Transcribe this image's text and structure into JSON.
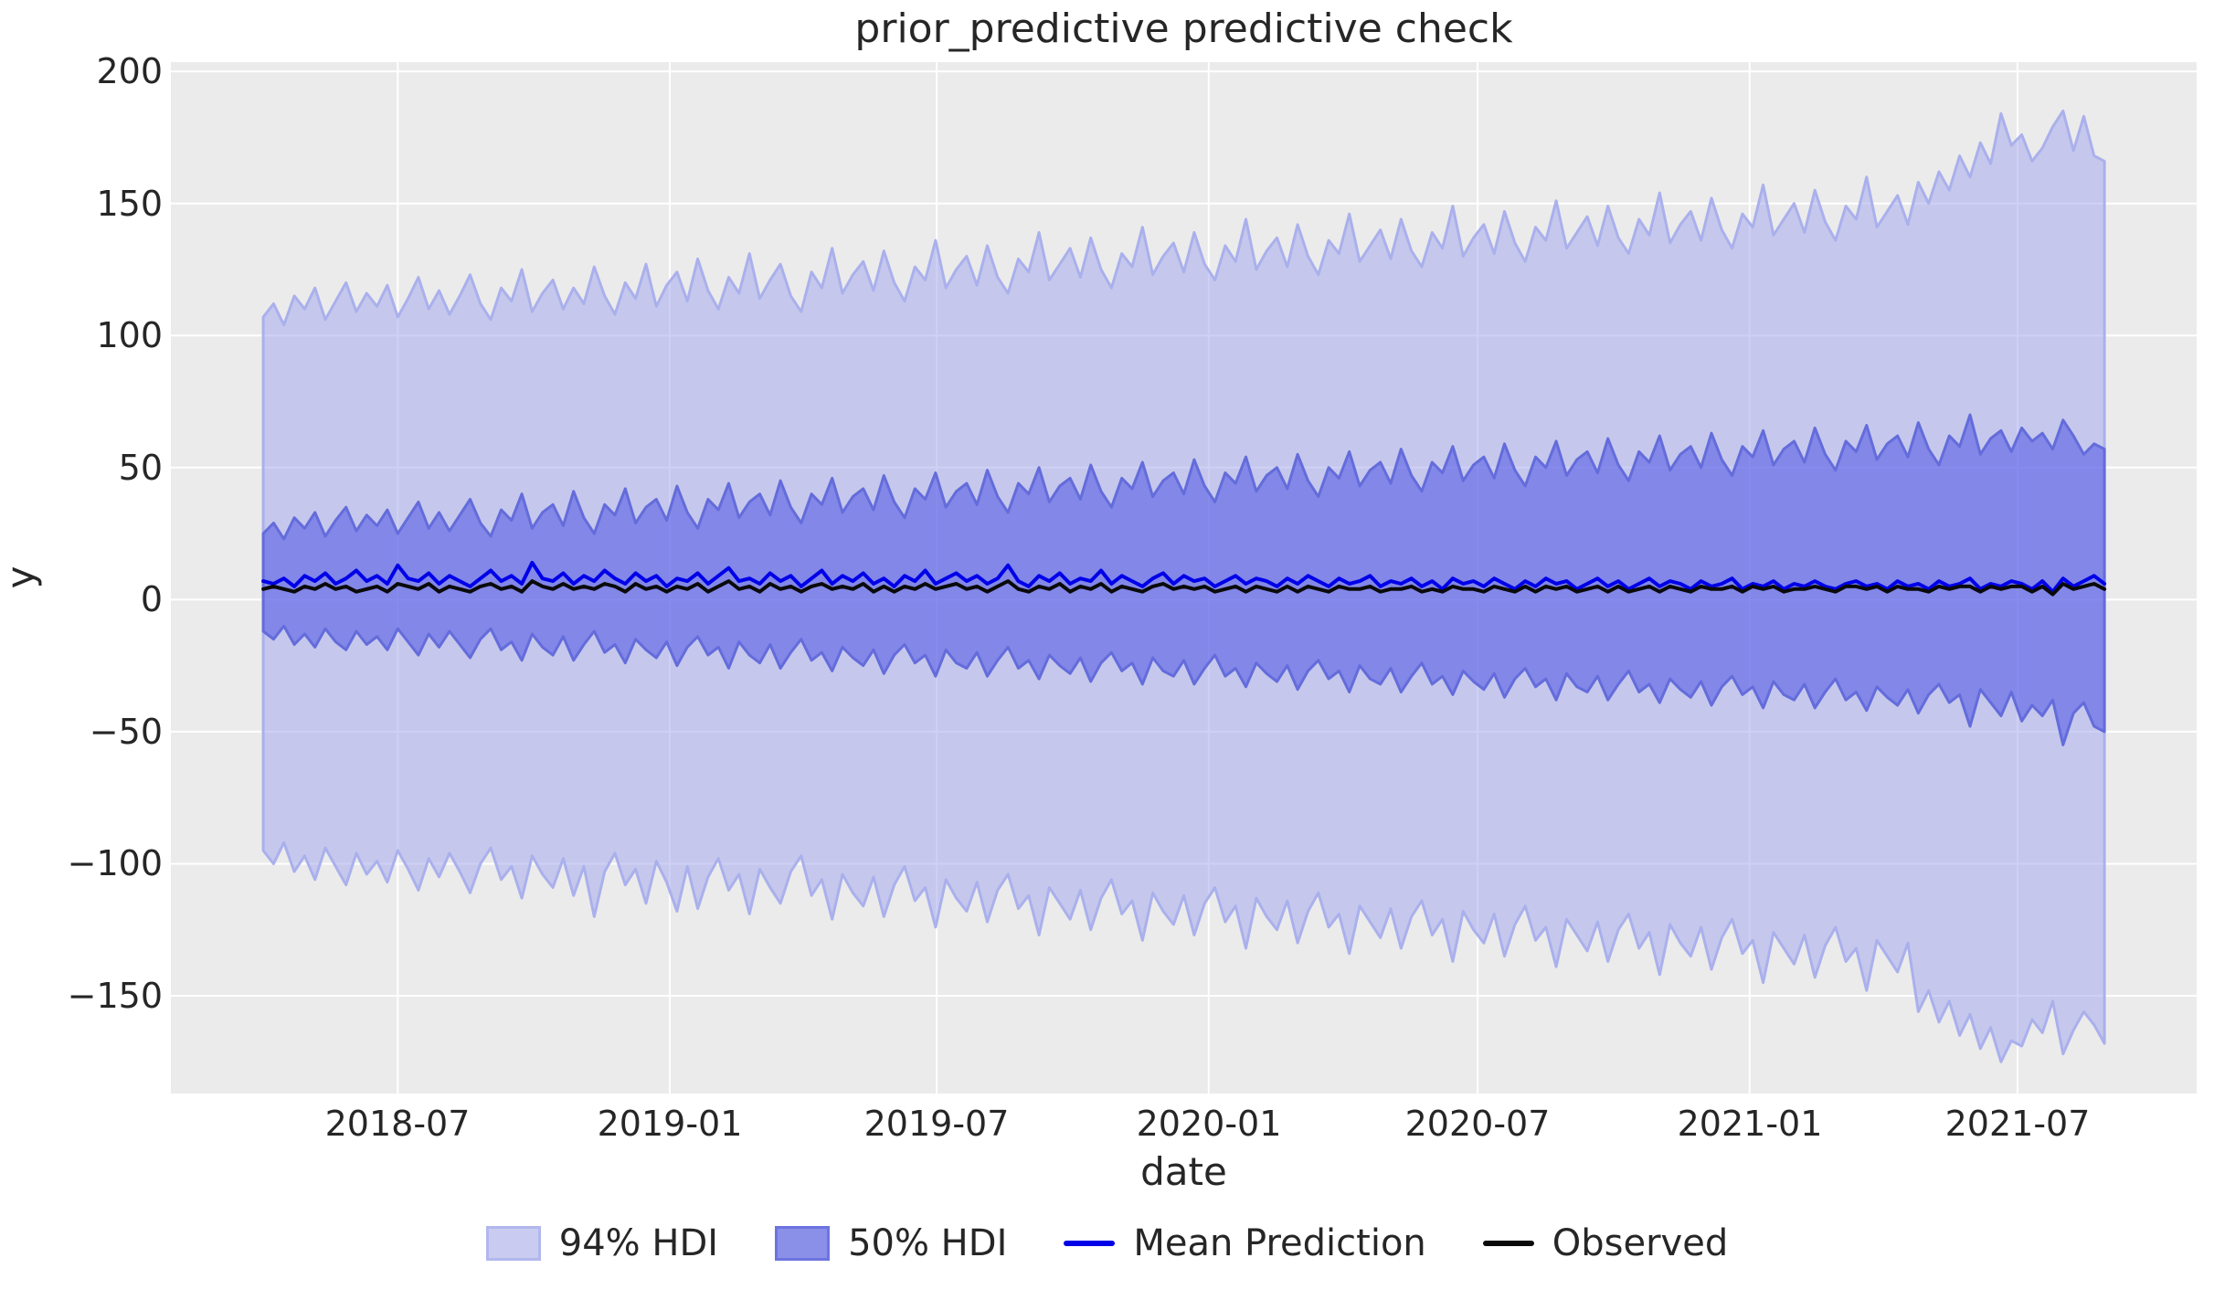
{
  "chart_data": {
    "type": "area",
    "title": "prior_predictive predictive check",
    "xlabel": "date",
    "ylabel": "y",
    "plot_bg_color": "#ebebeb",
    "grid_color": "#ffffff",
    "text_color": "#262626",
    "grid": true,
    "legend_position": "bottom",
    "x_start_date": "2018-04-01",
    "x_step_days": 7,
    "n_points": 179,
    "ylim": [
      -187,
      203.5
    ],
    "y_ticks": [
      {
        "value": 200,
        "label": "200"
      },
      {
        "value": 150,
        "label": "150"
      },
      {
        "value": 100,
        "label": "100"
      },
      {
        "value": 50,
        "label": "50"
      },
      {
        "value": 0,
        "label": "0"
      },
      {
        "value": -50,
        "label": "−50"
      },
      {
        "value": -100,
        "label": "−100"
      },
      {
        "value": -150,
        "label": "−150"
      }
    ],
    "x_ticks": [
      {
        "label": "2018-07",
        "index": 13.0
      },
      {
        "label": "2019-01",
        "index": 39.3
      },
      {
        "label": "2019-07",
        "index": 65.1
      },
      {
        "label": "2020-01",
        "index": 91.4
      },
      {
        "label": "2020-07",
        "index": 117.4
      },
      {
        "label": "2021-01",
        "index": 143.7
      },
      {
        "label": "2021-07",
        "index": 169.6
      }
    ],
    "series": [
      {
        "name": "94% HDI",
        "type": "band",
        "fill": "rgba(166,171,237,0.55)",
        "edge": "#aab0ec",
        "legend_fill": "#c9ccf0",
        "legend_edge": "#b2b7ee",
        "upper": [
          107,
          112,
          104,
          115,
          110,
          118,
          106,
          113,
          120,
          109,
          116,
          111,
          119,
          107,
          114,
          122,
          110,
          117,
          108,
          115,
          123,
          112,
          106,
          118,
          113,
          125,
          109,
          116,
          121,
          110,
          118,
          112,
          126,
          115,
          108,
          120,
          114,
          127,
          111,
          119,
          124,
          113,
          129,
          117,
          110,
          122,
          116,
          131,
          114,
          121,
          127,
          115,
          109,
          124,
          118,
          133,
          116,
          123,
          128,
          117,
          132,
          120,
          113,
          126,
          121,
          136,
          118,
          125,
          130,
          119,
          134,
          122,
          116,
          129,
          124,
          139,
          121,
          127,
          133,
          122,
          137,
          125,
          118,
          131,
          126,
          141,
          123,
          130,
          135,
          124,
          139,
          127,
          121,
          134,
          128,
          144,
          125,
          132,
          137,
          126,
          142,
          130,
          123,
          136,
          131,
          146,
          128,
          134,
          140,
          129,
          144,
          132,
          126,
          139,
          133,
          149,
          130,
          137,
          142,
          131,
          147,
          135,
          128,
          141,
          136,
          151,
          133,
          139,
          145,
          134,
          149,
          137,
          131,
          144,
          138,
          154,
          135,
          142,
          147,
          136,
          152,
          140,
          133,
          146,
          141,
          157,
          138,
          144,
          150,
          139,
          155,
          143,
          136,
          149,
          144,
          160,
          141,
          147,
          153,
          142,
          158,
          150,
          162,
          155,
          168,
          160,
          173,
          165,
          184,
          172,
          176,
          166,
          171,
          179,
          185,
          170,
          183,
          168,
          166
        ],
        "lower": [
          -95,
          -100,
          -92,
          -103,
          -97,
          -106,
          -94,
          -101,
          -108,
          -96,
          -104,
          -99,
          -107,
          -95,
          -102,
          -110,
          -98,
          -105,
          -96,
          -103,
          -111,
          -100,
          -94,
          -106,
          -101,
          -113,
          -97,
          -104,
          -109,
          -98,
          -112,
          -101,
          -120,
          -103,
          -96,
          -108,
          -102,
          -115,
          -99,
          -107,
          -118,
          -101,
          -117,
          -105,
          -98,
          -110,
          -104,
          -119,
          -102,
          -109,
          -115,
          -103,
          -97,
          -112,
          -106,
          -121,
          -104,
          -111,
          -116,
          -105,
          -120,
          -108,
          -101,
          -114,
          -109,
          -124,
          -106,
          -113,
          -118,
          -107,
          -122,
          -110,
          -104,
          -117,
          -112,
          -127,
          -109,
          -115,
          -121,
          -110,
          -125,
          -113,
          -106,
          -119,
          -114,
          -129,
          -111,
          -118,
          -123,
          -112,
          -127,
          -115,
          -109,
          -122,
          -116,
          -132,
          -113,
          -120,
          -125,
          -114,
          -130,
          -118,
          -111,
          -124,
          -119,
          -134,
          -116,
          -122,
          -128,
          -117,
          -132,
          -120,
          -114,
          -127,
          -121,
          -137,
          -118,
          -125,
          -130,
          -119,
          -135,
          -123,
          -116,
          -129,
          -124,
          -139,
          -121,
          -127,
          -133,
          -122,
          -137,
          -125,
          -119,
          -132,
          -126,
          -142,
          -123,
          -130,
          -135,
          -124,
          -140,
          -128,
          -121,
          -134,
          -129,
          -145,
          -126,
          -132,
          -138,
          -127,
          -143,
          -131,
          -124,
          -137,
          -132,
          -148,
          -129,
          -135,
          -141,
          -130,
          -156,
          -148,
          -160,
          -152,
          -165,
          -157,
          -170,
          -162,
          -175,
          -167,
          -169,
          -159,
          -164,
          -152,
          -172,
          -163,
          -156,
          -161,
          -168
        ]
      },
      {
        "name": "50% HDI",
        "type": "band",
        "fill": "rgba(75,82,229,0.55)",
        "edge": "#646cdb",
        "legend_fill": "#8a8fe8",
        "legend_edge": "#6d74e0",
        "upper": [
          25,
          29,
          23,
          31,
          27,
          33,
          24,
          30,
          35,
          26,
          32,
          28,
          34,
          25,
          31,
          37,
          27,
          33,
          26,
          32,
          38,
          29,
          24,
          34,
          30,
          40,
          27,
          33,
          36,
          28,
          41,
          31,
          25,
          36,
          32,
          42,
          29,
          35,
          38,
          30,
          43,
          33,
          27,
          38,
          34,
          44,
          31,
          37,
          40,
          32,
          45,
          35,
          29,
          40,
          36,
          46,
          33,
          39,
          42,
          34,
          47,
          37,
          31,
          42,
          38,
          48,
          35,
          41,
          44,
          36,
          49,
          39,
          33,
          44,
          40,
          50,
          37,
          43,
          46,
          38,
          51,
          41,
          35,
          46,
          42,
          52,
          39,
          45,
          48,
          40,
          53,
          43,
          37,
          48,
          44,
          54,
          41,
          47,
          50,
          42,
          55,
          45,
          39,
          50,
          46,
          56,
          43,
          49,
          52,
          44,
          57,
          47,
          41,
          52,
          48,
          58,
          45,
          51,
          54,
          46,
          59,
          49,
          43,
          54,
          50,
          60,
          47,
          53,
          56,
          48,
          61,
          51,
          45,
          56,
          52,
          62,
          49,
          55,
          58,
          50,
          63,
          53,
          47,
          58,
          54,
          64,
          51,
          57,
          60,
          52,
          65,
          55,
          49,
          60,
          56,
          66,
          53,
          59,
          62,
          54,
          67,
          57,
          51,
          62,
          58,
          70,
          55,
          61,
          64,
          56,
          65,
          60,
          63,
          57,
          68,
          62,
          55,
          59,
          57
        ],
        "lower": [
          -12,
          -15,
          -10,
          -17,
          -13,
          -18,
          -11,
          -16,
          -19,
          -12,
          -17,
          -14,
          -19,
          -11,
          -16,
          -21,
          -13,
          -18,
          -12,
          -17,
          -22,
          -15,
          -11,
          -19,
          -16,
          -23,
          -13,
          -18,
          -21,
          -14,
          -23,
          -17,
          -12,
          -20,
          -17,
          -24,
          -15,
          -19,
          -22,
          -16,
          -25,
          -18,
          -14,
          -21,
          -18,
          -26,
          -16,
          -21,
          -24,
          -17,
          -26,
          -20,
          -15,
          -23,
          -20,
          -27,
          -18,
          -22,
          -25,
          -19,
          -28,
          -21,
          -17,
          -24,
          -21,
          -29,
          -19,
          -24,
          -26,
          -20,
          -29,
          -23,
          -18,
          -26,
          -23,
          -30,
          -21,
          -25,
          -28,
          -22,
          -31,
          -24,
          -20,
          -27,
          -24,
          -32,
          -22,
          -27,
          -29,
          -23,
          -32,
          -26,
          -21,
          -29,
          -26,
          -33,
          -24,
          -28,
          -31,
          -25,
          -34,
          -27,
          -23,
          -30,
          -27,
          -35,
          -25,
          -30,
          -32,
          -26,
          -35,
          -29,
          -24,
          -32,
          -29,
          -36,
          -27,
          -31,
          -34,
          -28,
          -37,
          -30,
          -26,
          -33,
          -30,
          -38,
          -28,
          -33,
          -35,
          -29,
          -38,
          -32,
          -27,
          -35,
          -32,
          -39,
          -30,
          -34,
          -37,
          -31,
          -40,
          -33,
          -29,
          -36,
          -33,
          -41,
          -31,
          -36,
          -38,
          -32,
          -41,
          -35,
          -30,
          -38,
          -35,
          -42,
          -33,
          -37,
          -40,
          -34,
          -43,
          -36,
          -32,
          -39,
          -36,
          -48,
          -34,
          -39,
          -44,
          -35,
          -46,
          -40,
          -44,
          -38,
          -55,
          -43,
          -39,
          -48,
          -50
        ]
      },
      {
        "name": "Mean Prediction",
        "type": "line",
        "color": "#0000e8",
        "values": [
          7,
          6,
          8,
          5,
          9,
          7,
          10,
          6,
          8,
          11,
          7,
          9,
          6,
          13,
          8,
          7,
          10,
          6,
          9,
          7,
          5,
          8,
          11,
          7,
          9,
          6,
          14,
          8,
          7,
          10,
          6,
          9,
          7,
          11,
          8,
          6,
          10,
          7,
          9,
          5,
          8,
          7,
          10,
          6,
          9,
          12,
          7,
          8,
          6,
          10,
          7,
          9,
          5,
          8,
          11,
          6,
          9,
          7,
          10,
          6,
          8,
          5,
          9,
          7,
          11,
          6,
          8,
          10,
          7,
          9,
          6,
          8,
          13,
          7,
          5,
          9,
          7,
          10,
          6,
          8,
          7,
          11,
          6,
          9,
          7,
          5,
          8,
          10,
          6,
          9,
          7,
          8,
          5,
          7,
          9,
          6,
          8,
          7,
          5,
          8,
          6,
          9,
          7,
          5,
          8,
          6,
          7,
          9,
          5,
          7,
          6,
          8,
          5,
          7,
          4,
          8,
          6,
          7,
          5,
          8,
          6,
          4,
          7,
          5,
          8,
          6,
          7,
          4,
          6,
          8,
          5,
          7,
          4,
          6,
          8,
          5,
          7,
          6,
          4,
          7,
          5,
          6,
          8,
          4,
          6,
          5,
          7,
          4,
          6,
          5,
          7,
          5,
          4,
          6,
          7,
          5,
          6,
          4,
          7,
          5,
          6,
          4,
          7,
          5,
          6,
          8,
          4,
          6,
          5,
          7,
          6,
          4,
          7,
          3,
          8,
          5,
          7,
          9,
          6
        ]
      },
      {
        "name": "Observed",
        "type": "line",
        "color": "#0a0a0a",
        "values": [
          4,
          5,
          4,
          3,
          5,
          4,
          6,
          4,
          5,
          3,
          4,
          5,
          3,
          6,
          5,
          4,
          6,
          3,
          5,
          4,
          3,
          5,
          6,
          4,
          5,
          3,
          7,
          5,
          4,
          6,
          4,
          5,
          4,
          6,
          5,
          3,
          6,
          4,
          5,
          3,
          5,
          4,
          6,
          3,
          5,
          7,
          4,
          5,
          3,
          6,
          4,
          5,
          3,
          5,
          6,
          4,
          5,
          4,
          6,
          3,
          5,
          3,
          5,
          4,
          6,
          4,
          5,
          6,
          4,
          5,
          3,
          5,
          7,
          4,
          3,
          5,
          4,
          6,
          3,
          5,
          4,
          6,
          3,
          5,
          4,
          3,
          5,
          6,
          4,
          5,
          4,
          5,
          3,
          4,
          5,
          3,
          5,
          4,
          3,
          5,
          3,
          5,
          4,
          3,
          5,
          4,
          4,
          5,
          3,
          4,
          4,
          5,
          3,
          4,
          3,
          5,
          4,
          4,
          3,
          5,
          4,
          3,
          5,
          3,
          5,
          4,
          5,
          3,
          4,
          5,
          3,
          5,
          3,
          4,
          5,
          3,
          5,
          4,
          3,
          5,
          4,
          4,
          5,
          3,
          5,
          4,
          5,
          3,
          4,
          4,
          5,
          4,
          3,
          5,
          5,
          4,
          5,
          3,
          5,
          4,
          4,
          3,
          5,
          4,
          5,
          5,
          3,
          5,
          4,
          5,
          5,
          3,
          5,
          2,
          6,
          4,
          5,
          6,
          4
        ]
      }
    ]
  }
}
